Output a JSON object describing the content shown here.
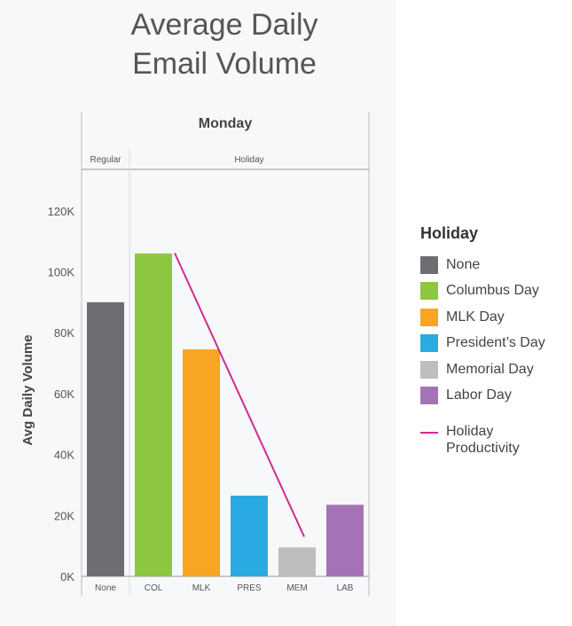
{
  "title_lines": [
    "Average Daily",
    "Email Volume"
  ],
  "colors": {
    "None": "#6d6e71",
    "Columbus Day": "#8dc63f",
    "MLK Day": "#f7a522",
    "President's Day": "#29aae2",
    "Memorial Day": "#bcbec0",
    "Labor Day": "#a473b5",
    "line": "#cf2b8f"
  },
  "legend": {
    "title": "Holiday",
    "items": [
      {
        "label": "None",
        "color": "#6d6e71"
      },
      {
        "label": "Columbus Day",
        "color": "#8dc63f"
      },
      {
        "label": "MLK Day",
        "color": "#f7a522"
      },
      {
        "label": "President’s Day",
        "color": "#29aae2"
      },
      {
        "label": "Memorial Day",
        "color": "#bcbec0"
      },
      {
        "label": "Labor Day",
        "color": "#a473b5"
      }
    ],
    "line_label_lines": [
      "Holiday",
      "Productivity"
    ]
  },
  "chart_data": {
    "type": "bar",
    "header": "Monday",
    "groups": [
      {
        "label": "Regular",
        "categories": [
          "None"
        ]
      },
      {
        "label": "Holiday",
        "categories": [
          "COL",
          "MLK",
          "PRES",
          "MEM",
          "LAB"
        ]
      }
    ],
    "categories": [
      "None",
      "COL",
      "MLK",
      "PRES",
      "MEM",
      "LAB"
    ],
    "values": [
      90000,
      106000,
      74500,
      26500,
      9500,
      23500
    ],
    "bar_colors": [
      "#6d6e71",
      "#8dc63f",
      "#f7a522",
      "#29aae2",
      "#bcbec0",
      "#a473b5"
    ],
    "ylabel": "Avg Daily Volume",
    "xlabel": "",
    "ylim": [
      0,
      135000
    ],
    "yticks": [
      0,
      20000,
      40000,
      60000,
      80000,
      100000,
      120000
    ],
    "ytick_labels": [
      "0K",
      "20K",
      "40K",
      "60K",
      "80K",
      "100K",
      "120K"
    ],
    "trend_line": {
      "name": "Holiday Productivity",
      "points": [
        {
          "x": "COL",
          "y": 106000
        },
        {
          "x": "MEM",
          "y": 13000
        }
      ]
    }
  }
}
